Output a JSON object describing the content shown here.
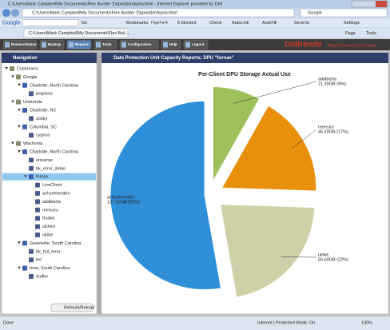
{
  "window": {
    "title": "C:\\Users\\Mark Campbell\\My Documents\\Flex Builder 2\\bpria\\bin\\bpria.html - Internet Explorer provided by Dell",
    "address": "C:\\Users\\Mark Campbell\\My Documents\\Flex Builder 2\\bpria\\bin\\bpria.html",
    "search": "Google",
    "tab": "C:\\Users\\Mark Campbell\\My Documents\\Flex Buil...",
    "page_menu": "Page",
    "tools_menu": "Tools"
  },
  "google_toolbar": {
    "logo": "Google",
    "go": "Go",
    "bookmarks": "Bookmarks",
    "pagerank": "PageRank",
    "blocked": "6 blocked",
    "check": "Check",
    "autolink": "AutoLink",
    "autofill": "AutoFill",
    "send_to": "Send to",
    "settings": "Settings"
  },
  "app_toolbar": {
    "buttons": [
      "Restore/Status",
      "Backup",
      "Reports",
      "Tools",
      "Configuration",
      "Help",
      "Logout"
    ],
    "brand": "Unitrends",
    "tagline": "Rapid Recovery Console"
  },
  "navigation": {
    "title": "Navigation",
    "refresh": "Refresh/Reload",
    "tree": [
      {
        "label": "Customers",
        "children": [
          {
            "label": "Google",
            "children": [
              {
                "label": "Charlotte, North Carolina",
                "children": [
                  {
                    "label": "pegasus"
                  }
                ]
              }
            ]
          },
          {
            "label": "Unitrends",
            "children": [
              {
                "label": "Charlotte, NC",
                "children": [
                  {
                    "label": "zooky"
                  }
                ]
              },
              {
                "label": "Columbia, SC",
                "children": [
                  {
                    "label": "cygnus"
                  }
                ]
              }
            ]
          },
          {
            "label": "Wachovia",
            "children": [
              {
                "label": "Charlotte, North Carolina",
                "children": [
                  {
                    "label": "universe"
                  },
                  {
                    "label": "bk_error_detail"
                  },
                  {
                    "label": "fornax",
                    "selected": true,
                    "children": [
                      {
                        "label": "LiveClient"
                      },
                      {
                        "label": "achsemendes"
                      },
                      {
                        "label": "adalberta"
                      },
                      {
                        "label": "mercury"
                      },
                      {
                        "label": "troaka"
                      },
                      {
                        "label": "ulchiro"
                      },
                      {
                        "label": "ulrike"
                      }
                    ]
                  }
                ]
              },
              {
                "label": "Greenville, South Carolina",
                "children": [
                  {
                    "label": "bk_full_error"
                  },
                  {
                    "label": "leo"
                  }
                ]
              },
              {
                "label": "Irmo, South Carolina",
                "children": [
                  {
                    "label": "mafler"
                  }
                ]
              }
            ]
          }
        ]
      }
    ]
  },
  "report": {
    "title": "Data Protection Unit Capacity Reports; DPU \"fornax\""
  },
  "chart_data": {
    "type": "pie",
    "title": "Per-Client DPU Storage Actual Use",
    "categories": [
      "adalberta",
      "mercury",
      "ulrike",
      "achsemendes"
    ],
    "values": [
      21.3,
      45.2,
      56.6,
      137.52
    ],
    "value_labels": [
      "21.30GB (8%)",
      "45.20GB (17%)",
      "56.60GB (22%)",
      "137.52GB (53%)"
    ],
    "colors": [
      "#9dc05a",
      "#e8900c",
      "#cfcfa8",
      "#2f8fd8"
    ]
  },
  "status_bar": {
    "status": "Done",
    "zone": "Internet | Protected Mode: On",
    "zoom": "100%"
  }
}
